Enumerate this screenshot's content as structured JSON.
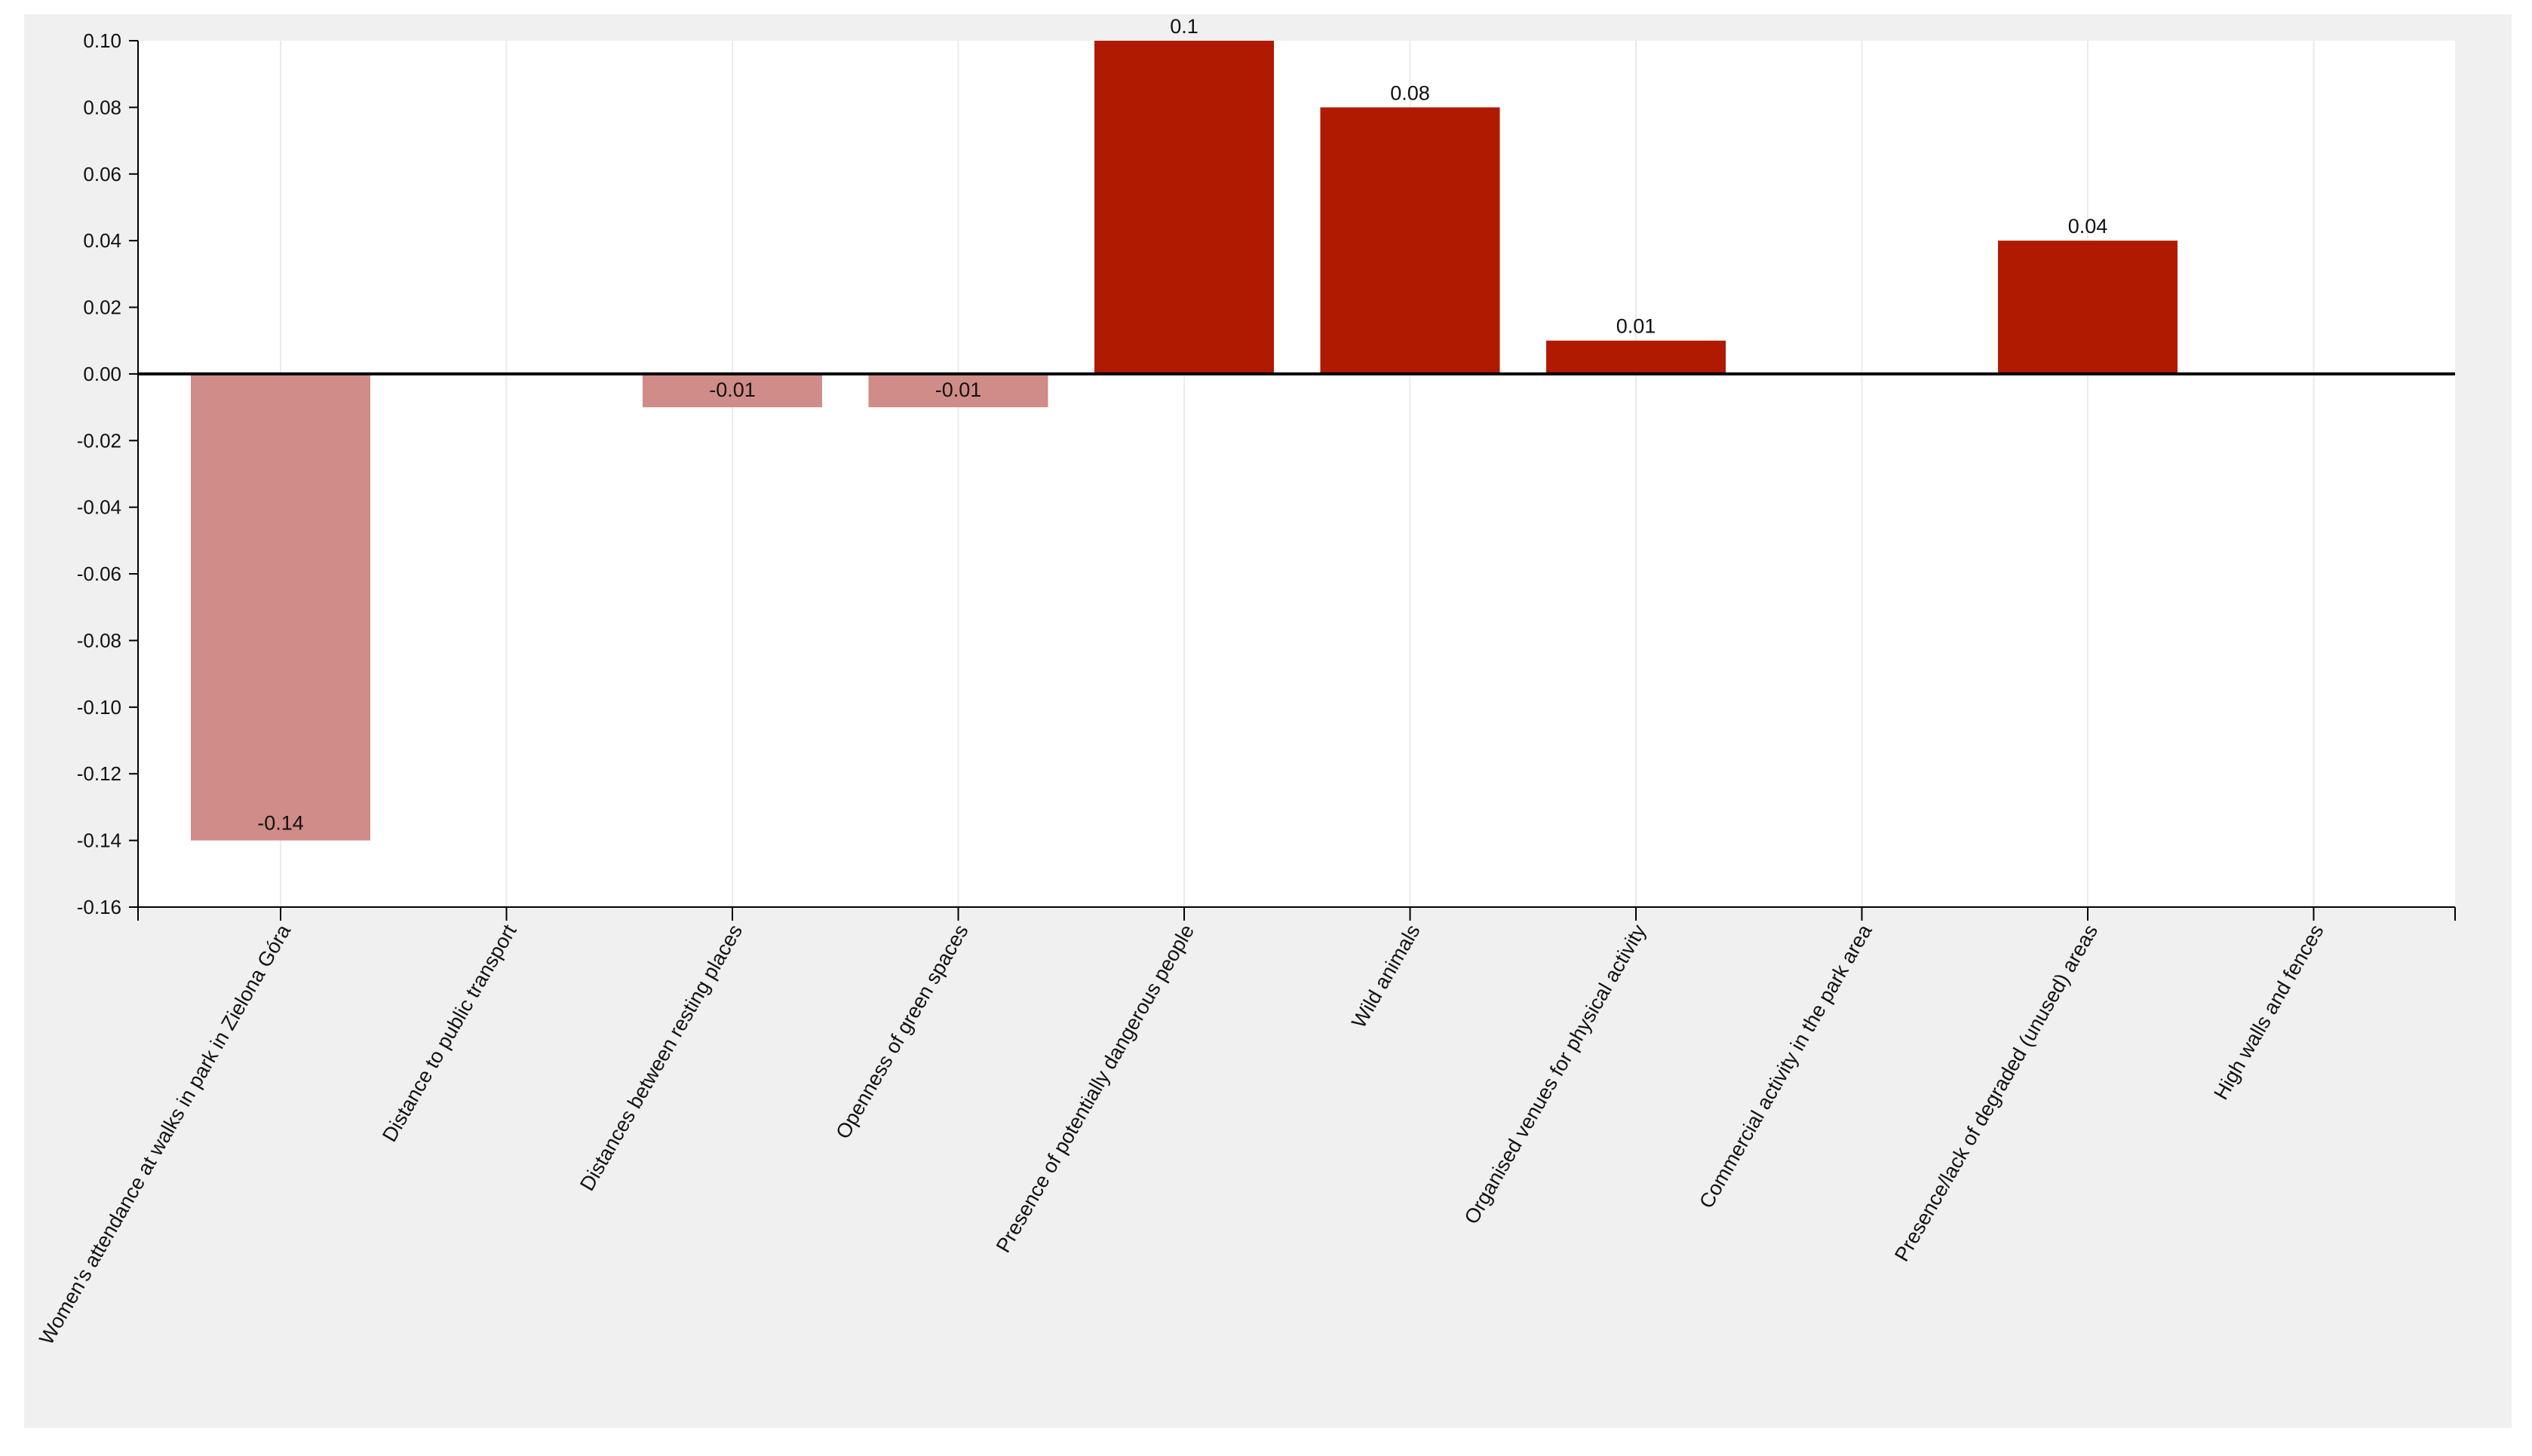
{
  "chart_data": {
    "type": "bar",
    "categories": [
      "Women's attendance at walks in park in Zielona Góra",
      "Distance to public transport",
      "Distances between resting places",
      "Openness of green spaces",
      "Presence of potentially dangerous people",
      "Wild animals",
      "Organised venues for physical activity",
      "Commercial activity in the park area",
      "Presence/lack of degraded (unused) areas",
      "High walls and fences"
    ],
    "values": [
      -0.14,
      0,
      -0.01,
      -0.01,
      0.1,
      0.08,
      0.01,
      0,
      0.04,
      0
    ],
    "data_labels": [
      "-0.14",
      null,
      "-0.01",
      "-0.01",
      "0.1",
      "0.08",
      "0.01",
      null,
      "0.04",
      null
    ],
    "ylim": [
      -0.16,
      0.1
    ],
    "y_ticks": [
      "0.10",
      "0.08",
      "0.06",
      "0.04",
      "0.02",
      "0.00",
      "-0.02",
      "-0.04",
      "-0.06",
      "-0.08",
      "-0.10",
      "-0.12",
      "-0.14",
      "-0.16"
    ],
    "title": "",
    "xlabel": "",
    "ylabel": "",
    "grid": "vertical",
    "colors": {
      "positive": "#b01a00",
      "negative": "#d08c88",
      "zero_line": "#000000",
      "grid": "#ebebeb",
      "plot_bg": "#ffffff",
      "frame_bg": "#f0f0f0"
    }
  }
}
